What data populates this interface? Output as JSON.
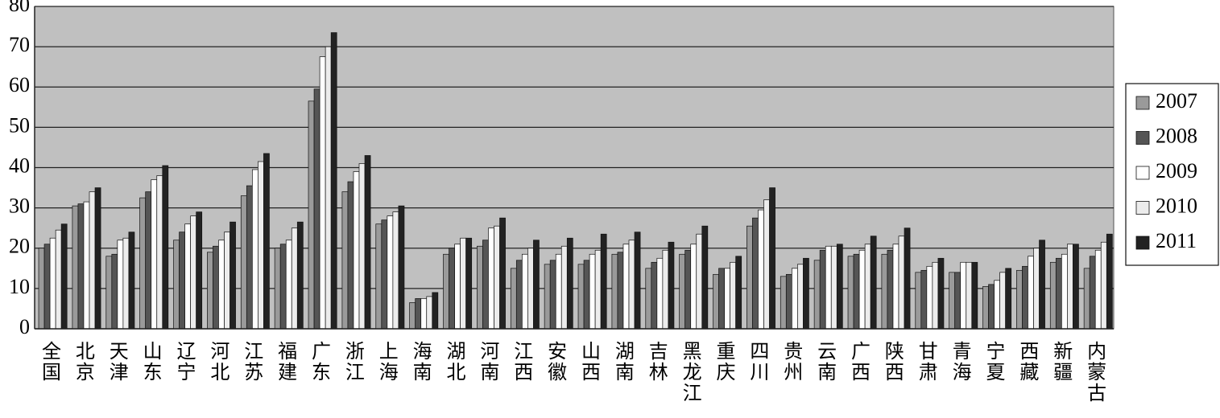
{
  "chart_data": {
    "type": "bar",
    "categories": [
      "全国",
      "北京",
      "天津",
      "山东",
      "辽宁",
      "河北",
      "江苏",
      "福建",
      "广东",
      "浙江",
      "上海",
      "海南",
      "湖北",
      "河南",
      "江西",
      "安徽",
      "山西",
      "湖南",
      "吉林",
      "黑龙江",
      "重庆",
      "四川",
      "贵州",
      "云南",
      "广西",
      "陕西",
      "甘肃",
      "青海",
      "宁夏",
      "西藏",
      "新疆",
      "内蒙古"
    ],
    "series": [
      {
        "name": "2007",
        "color": "#9a9a9a",
        "values": [
          20,
          30.5,
          18,
          32.5,
          22,
          19,
          33,
          20,
          56.5,
          34,
          26,
          6.5,
          18.5,
          20.5,
          15,
          16,
          16,
          18.5,
          15,
          18.5,
          13.5,
          25.5,
          13,
          17,
          18,
          18.5,
          14,
          14,
          10.5,
          14.5,
          16.5,
          15
        ]
      },
      {
        "name": "2008",
        "color": "#555555",
        "values": [
          21,
          31,
          18.5,
          34,
          24,
          20.5,
          35.5,
          21,
          59.5,
          36.5,
          27,
          7.5,
          20,
          22,
          17,
          17,
          17,
          19,
          16.5,
          19.5,
          15,
          27.5,
          13.5,
          19.5,
          18.5,
          19.5,
          14.5,
          14,
          11,
          15.5,
          17.5,
          18
        ]
      },
      {
        "name": "2009",
        "color": "#ffffff",
        "values": [
          22.5,
          31.5,
          22,
          37,
          26,
          22,
          39.5,
          22,
          67.5,
          39,
          28,
          7.5,
          21,
          25,
          18.5,
          18.5,
          18.5,
          21,
          17.5,
          21,
          15,
          29.5,
          15,
          20.5,
          19.5,
          21,
          15.5,
          16.5,
          12,
          18,
          18.5,
          19.5
        ]
      },
      {
        "name": "2010",
        "color": "#ececec",
        "values": [
          24.5,
          34,
          22.5,
          38,
          28,
          24,
          41.5,
          25,
          70,
          41,
          29,
          8,
          22.5,
          25.5,
          20,
          20.5,
          19.5,
          22,
          19.5,
          23.5,
          16.5,
          32,
          16,
          20.5,
          21,
          23,
          16.5,
          16.5,
          14,
          20,
          21,
          21.5
        ]
      },
      {
        "name": "2011",
        "color": "#222222",
        "values": [
          26,
          35,
          24,
          40.5,
          29,
          26.5,
          43.5,
          26.5,
          73.5,
          43,
          30.5,
          9,
          22.5,
          27.5,
          22,
          22.5,
          23.5,
          24,
          21.5,
          25.5,
          18,
          35,
          17.5,
          21,
          23,
          25,
          17.5,
          16.5,
          15,
          22,
          21,
          23.5
        ]
      }
    ],
    "ylim": [
      0,
      80
    ],
    "yticks": [
      0,
      10,
      20,
      30,
      40,
      50,
      60,
      70,
      80
    ],
    "grid": true,
    "legend": "right"
  }
}
